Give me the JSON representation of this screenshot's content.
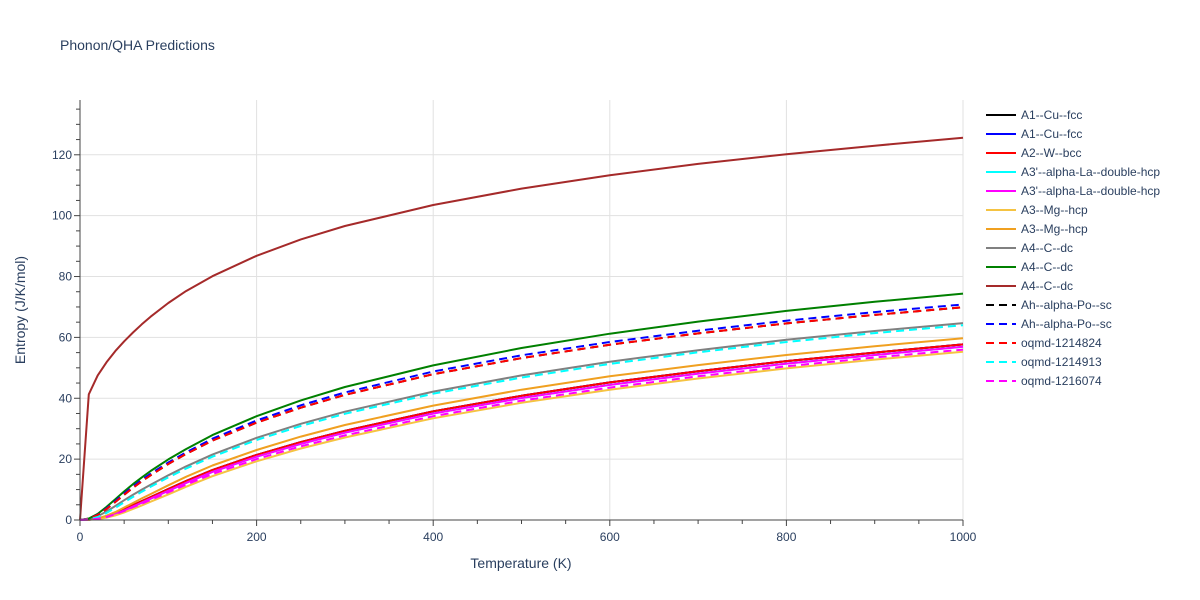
{
  "chart_data": {
    "type": "line",
    "title": "Phonon/QHA Predictions",
    "xlabel": "Temperature (K)",
    "ylabel": "Entropy (J/K/mol)",
    "xlim": [
      0,
      1000
    ],
    "ylim": [
      0,
      138
    ],
    "x_ticks": [
      0,
      200,
      400,
      600,
      800,
      1000
    ],
    "y_ticks": [
      0,
      20,
      40,
      60,
      80,
      100,
      120
    ],
    "x_tick_labels": [
      "0",
      "200",
      "400",
      "600",
      "800",
      "1000"
    ],
    "y_tick_labels": [
      "0",
      "20",
      "40",
      "60",
      "80",
      "100",
      "120"
    ],
    "grid": true,
    "legend_position": "right",
    "x": [
      0,
      10,
      20,
      30,
      40,
      50,
      60,
      70,
      80,
      100,
      120,
      150,
      200,
      250,
      300,
      400,
      500,
      600,
      700,
      800,
      900,
      1000
    ],
    "series": [
      {
        "name": "A1--Cu--fcc",
        "color": "#000000",
        "dash": "solid",
        "values": [
          0,
          0.1,
          0.5,
          1.2,
          2.2,
          3.5,
          4.9,
          6.2,
          7.5,
          10.2,
          12.8,
          16.4,
          21.4,
          25.6,
          29.3,
          35.7,
          40.8,
          45.2,
          48.9,
          52.2,
          55.0,
          57.7
        ]
      },
      {
        "name": "A1--Cu--fcc",
        "color": "#0000ff",
        "dash": "solid",
        "values": [
          0,
          0.1,
          0.5,
          1.2,
          2.2,
          3.5,
          4.9,
          6.2,
          7.5,
          10.2,
          12.8,
          16.4,
          21.4,
          25.6,
          29.3,
          35.7,
          40.8,
          45.2,
          48.9,
          52.2,
          55.0,
          57.7
        ]
      },
      {
        "name": "A2--W--bcc",
        "color": "#ff0000",
        "dash": "solid",
        "values": [
          0,
          0.1,
          0.5,
          1.2,
          2.2,
          3.5,
          4.9,
          6.2,
          7.5,
          10.2,
          12.8,
          16.4,
          21.4,
          25.6,
          29.3,
          35.7,
          40.8,
          45.2,
          48.9,
          52.2,
          55.0,
          57.7
        ]
      },
      {
        "name": "A3'--alpha-La--double-hcp",
        "color": "#00ffff",
        "dash": "solid",
        "values": [
          0,
          0.1,
          0.4,
          1.0,
          1.9,
          3.1,
          4.4,
          5.7,
          7.0,
          9.6,
          12.2,
          15.8,
          20.8,
          25.0,
          28.7,
          35.0,
          40.1,
          44.4,
          48.1,
          51.4,
          54.2,
          56.9
        ]
      },
      {
        "name": "A3'--alpha-La--double-hcp",
        "color": "#ff00ff",
        "dash": "solid",
        "values": [
          0,
          0.1,
          0.4,
          1.0,
          1.9,
          3.1,
          4.4,
          5.7,
          7.0,
          9.6,
          12.2,
          15.8,
          20.8,
          25.0,
          28.7,
          35.0,
          40.1,
          44.4,
          48.1,
          51.4,
          54.2,
          56.9
        ]
      },
      {
        "name": "A3--Mg--hcp",
        "color": "#f5c342",
        "dash": "solid",
        "values": [
          0,
          0.1,
          0.3,
          0.8,
          1.5,
          2.5,
          3.6,
          4.8,
          6.0,
          8.4,
          10.9,
          14.4,
          19.3,
          23.5,
          27.1,
          33.4,
          38.5,
          42.8,
          46.5,
          49.8,
          52.7,
          55.3
        ]
      },
      {
        "name": "A3--Mg--hcp",
        "color": "#f0a020",
        "dash": "solid",
        "values": [
          0,
          0.1,
          0.5,
          1.4,
          2.6,
          4.1,
          5.6,
          7.1,
          8.5,
          11.4,
          14.2,
          17.9,
          23.0,
          27.4,
          31.2,
          37.6,
          42.8,
          47.2,
          50.9,
          54.2,
          57.1,
          59.7
        ]
      },
      {
        "name": "A4--C--dc",
        "color": "#808080",
        "dash": "solid",
        "values": [
          0,
          0.3,
          1.2,
          2.8,
          4.6,
          6.5,
          8.3,
          10.0,
          11.6,
          14.7,
          17.6,
          21.5,
          27.0,
          31.6,
          35.6,
          42.2,
          47.5,
          52.0,
          55.8,
          59.2,
          62.1,
          64.7
        ]
      },
      {
        "name": "A4--C--dc",
        "color": "#008000",
        "dash": "solid",
        "values": [
          0,
          0.5,
          2.0,
          4.3,
          6.8,
          9.4,
          11.8,
          14.0,
          16.1,
          19.9,
          23.3,
          27.9,
          34.1,
          39.3,
          43.7,
          50.8,
          56.5,
          61.2,
          65.2,
          68.7,
          71.7,
          74.4
        ]
      },
      {
        "name": "A4--C--dc",
        "color": "#a52a2a",
        "dash": "solid",
        "values": [
          0,
          41.3,
          47.5,
          51.8,
          55.5,
          58.7,
          61.6,
          64.3,
          66.8,
          71.3,
          75.2,
          80.1,
          86.8,
          92.2,
          96.6,
          103.5,
          108.9,
          113.3,
          117.0,
          120.2,
          123.0,
          125.6
        ]
      },
      {
        "name": "Ah--alpha-Po--sc",
        "color": "#000000",
        "dash": "dash",
        "values": [
          0,
          0.4,
          1.6,
          3.6,
          5.9,
          8.3,
          10.6,
          12.7,
          14.7,
          18.4,
          21.7,
          26.1,
          32.0,
          36.9,
          41.1,
          47.9,
          53.2,
          57.6,
          61.3,
          64.6,
          67.4,
          69.9
        ]
      },
      {
        "name": "Ah--alpha-Po--sc",
        "color": "#0000ff",
        "dash": "dash",
        "values": [
          0,
          0.4,
          1.7,
          3.8,
          6.2,
          8.7,
          11.0,
          13.2,
          15.2,
          18.9,
          22.2,
          26.7,
          32.7,
          37.7,
          41.9,
          48.8,
          54.1,
          58.5,
          62.2,
          65.5,
          68.3,
          70.8
        ]
      },
      {
        "name": "oqmd-1214824",
        "color": "#ff0000",
        "dash": "dash",
        "values": [
          0,
          0.4,
          1.6,
          3.6,
          5.9,
          8.3,
          10.6,
          12.7,
          14.7,
          18.4,
          21.7,
          26.1,
          32.0,
          36.9,
          41.1,
          47.9,
          53.2,
          57.6,
          61.3,
          64.6,
          67.4,
          69.9
        ]
      },
      {
        "name": "oqmd-1214913",
        "color": "#00ffff",
        "dash": "dash",
        "values": [
          0,
          0.2,
          1.0,
          2.3,
          4.0,
          5.8,
          7.6,
          9.3,
          10.9,
          14.0,
          16.9,
          20.8,
          26.3,
          30.9,
          34.9,
          41.5,
          46.8,
          51.3,
          55.1,
          58.5,
          61.4,
          64.0
        ]
      },
      {
        "name": "oqmd-1216074",
        "color": "#ff00ff",
        "dash": "dash",
        "values": [
          0,
          0.1,
          0.4,
          1.0,
          1.9,
          3.0,
          4.2,
          5.4,
          6.6,
          9.1,
          11.6,
          15.1,
          20.0,
          24.2,
          27.8,
          34.1,
          39.2,
          43.5,
          47.2,
          50.5,
          53.4,
          56.0
        ]
      }
    ]
  }
}
